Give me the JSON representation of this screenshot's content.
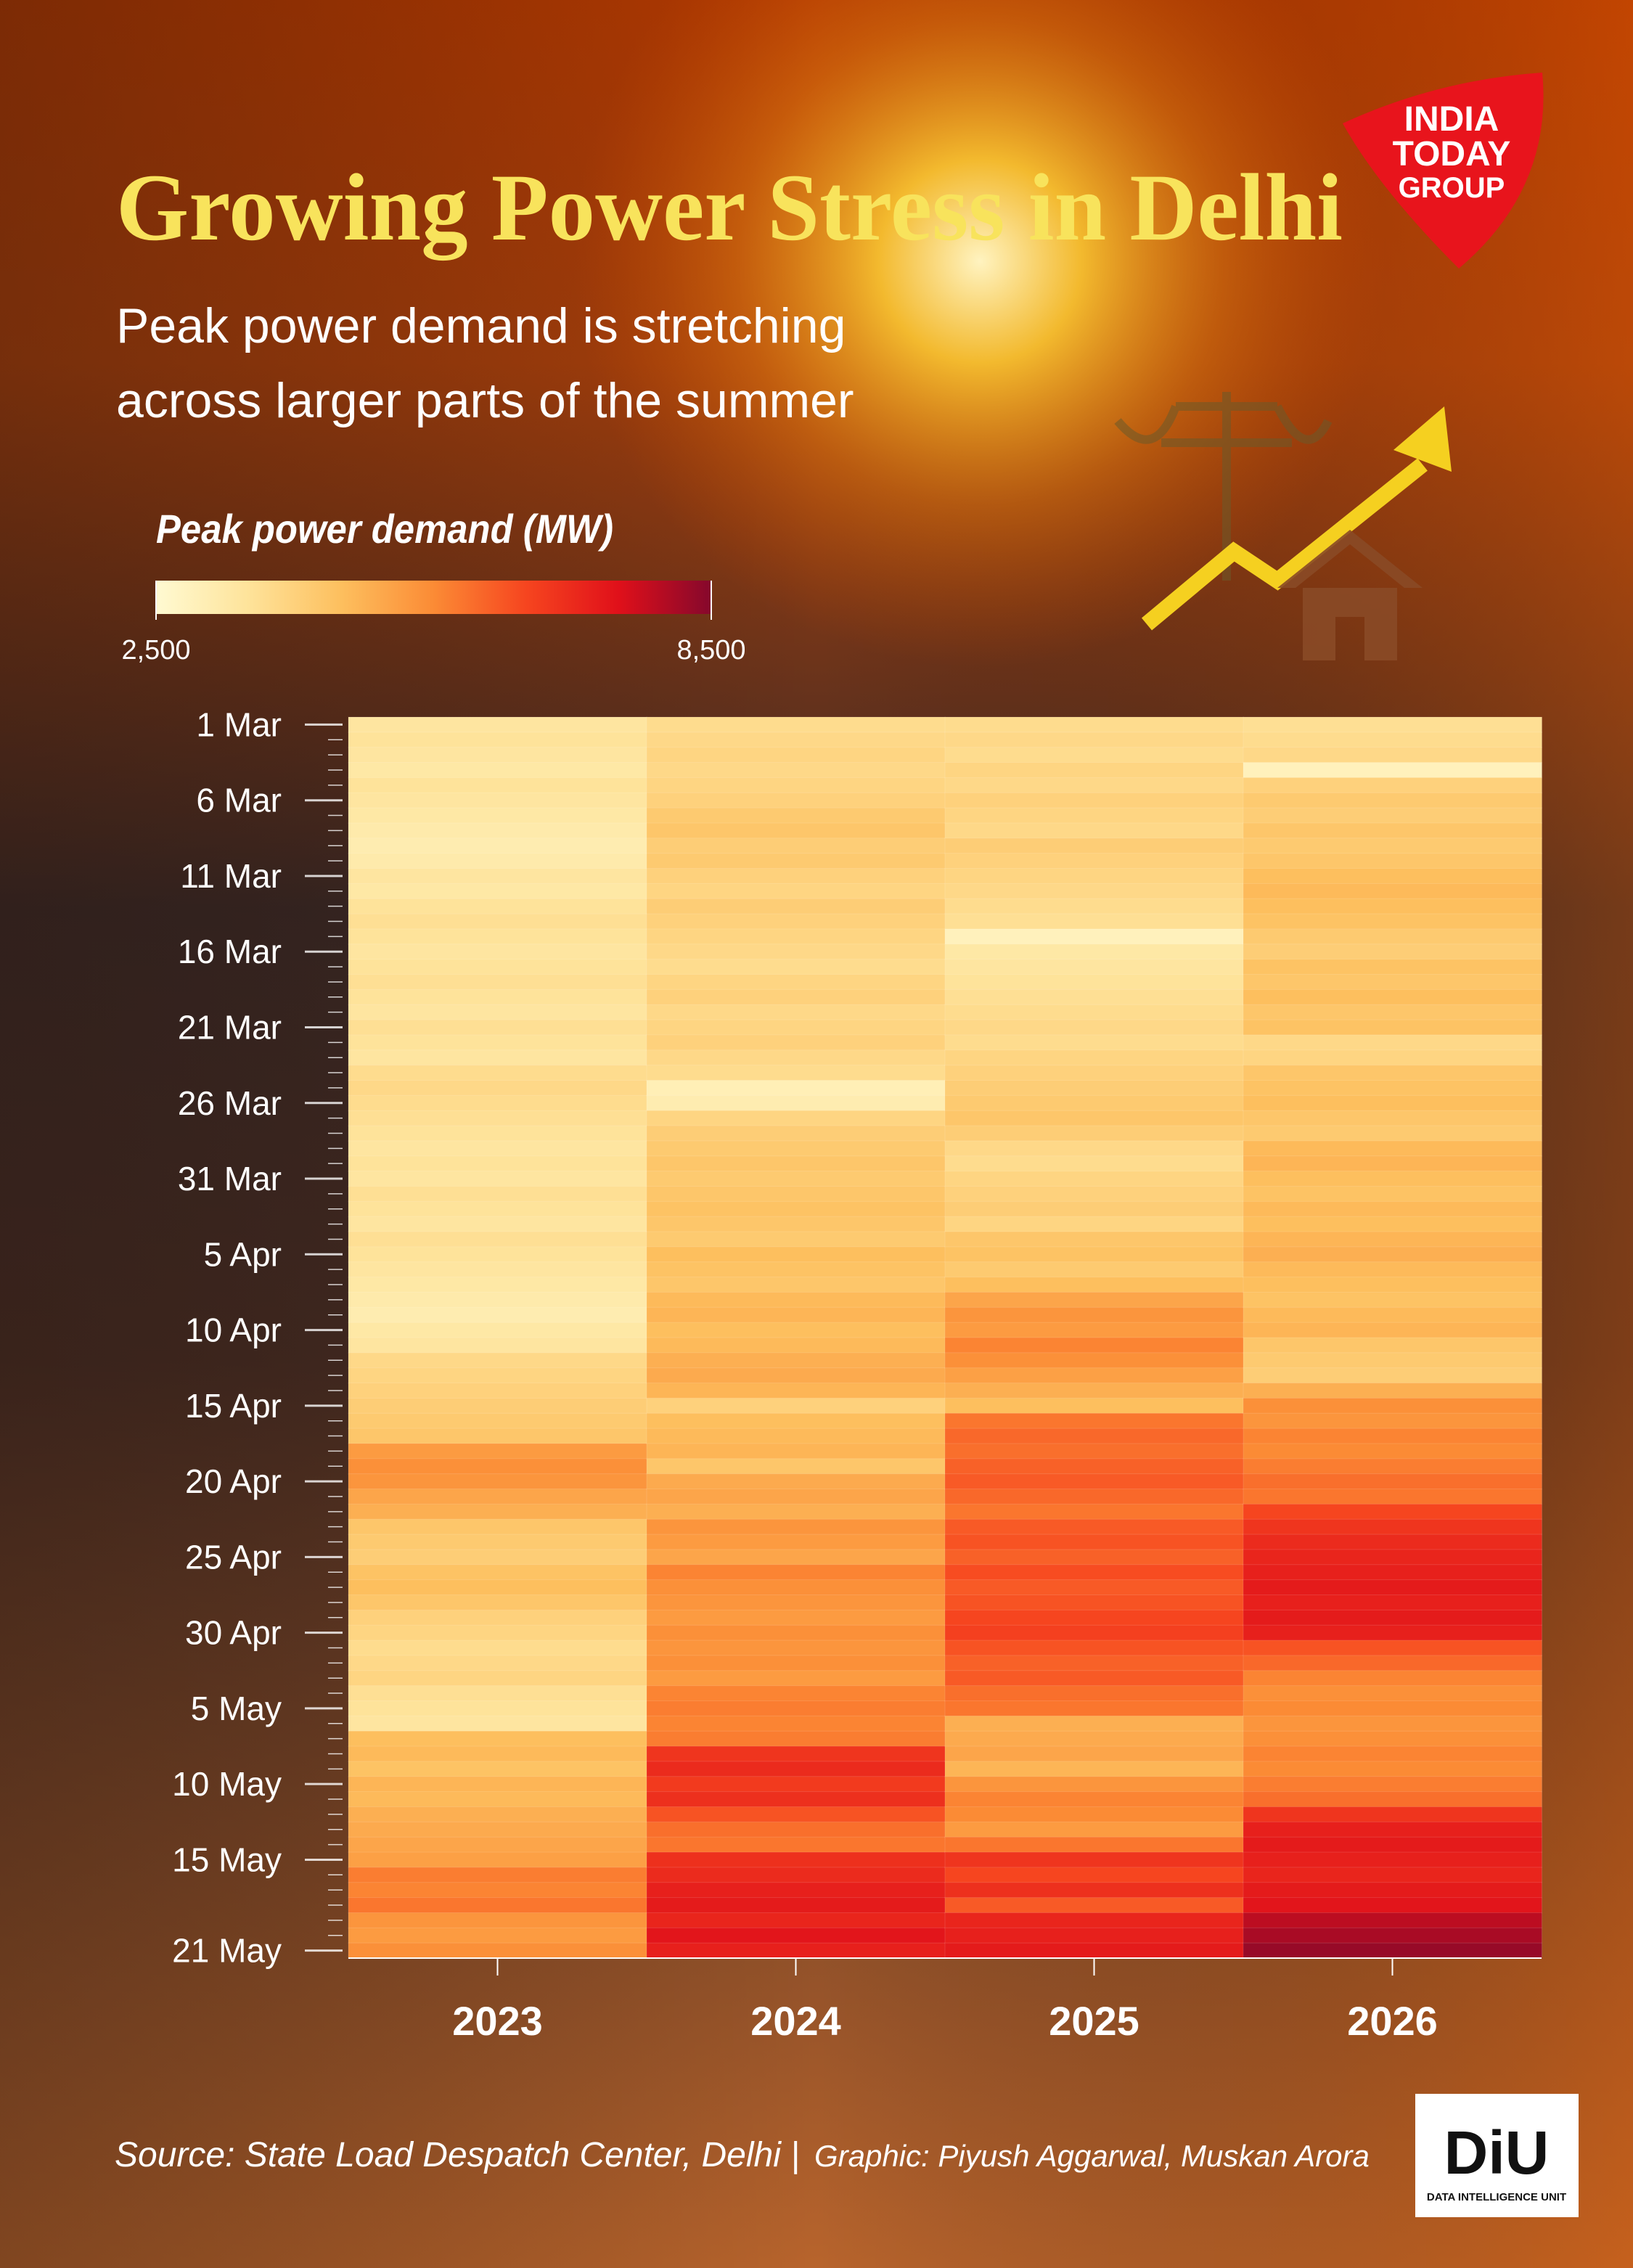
{
  "chart_data": {
    "type": "heatmap",
    "title": "Growing Power Stress in Delhi",
    "subtitle": [
      "Peak power demand is stretching",
      "across larger parts of the summer"
    ],
    "source": "Source: State Load Despatch Center, Delhi |",
    "credit": "Graphic: Piyush Aggarwal, Muskan Arora",
    "logos": {
      "top": [
        "INDIA",
        "TODAY",
        "GROUP"
      ],
      "bottom": [
        "DiU",
        "DATA INTELLIGENCE UNIT"
      ]
    },
    "colorbar": {
      "title": "Peak power demand (MW)",
      "lim": [
        2500,
        8500
      ],
      "ticks": [
        {
          "value": 2500,
          "label": "2,500"
        },
        {
          "value": 8500,
          "label": "8,500"
        }
      ],
      "colors": [
        "#fffad2",
        "#fee39a",
        "#fdbf5e",
        "#fb8b35",
        "#f6451f",
        "#e0101a",
        "#85082c"
      ]
    },
    "categories": [
      "1 Mar",
      null,
      null,
      null,
      null,
      "6 Mar",
      null,
      null,
      null,
      null,
      "11 Mar",
      null,
      null,
      null,
      null,
      "16 Mar",
      null,
      null,
      null,
      null,
      "21 Mar",
      null,
      null,
      null,
      null,
      "26 Mar",
      null,
      null,
      null,
      null,
      "31 Mar",
      null,
      null,
      null,
      null,
      "5 Apr",
      null,
      null,
      null,
      null,
      "10 Apr",
      null,
      null,
      null,
      null,
      "15 Apr",
      null,
      null,
      null,
      null,
      "20 Apr",
      null,
      null,
      null,
      null,
      "25 Apr",
      null,
      null,
      null,
      null,
      "30 Apr",
      null,
      null,
      null,
      null,
      "5 May",
      null,
      null,
      null,
      null,
      "10 May",
      null,
      null,
      null,
      null,
      "15 May",
      null,
      null,
      null,
      null,
      null,
      "21 May"
    ],
    "series": [
      {
        "name": "2023",
        "values": [
          3400,
          3500,
          3400,
          3300,
          3500,
          3400,
          3300,
          3200,
          3100,
          3200,
          3400,
          3300,
          3500,
          3600,
          3500,
          3400,
          3500,
          3600,
          3500,
          3400,
          3600,
          3500,
          3400,
          3700,
          3800,
          3700,
          3600,
          3500,
          3400,
          3500,
          3400,
          3600,
          3500,
          3400,
          3600,
          3500,
          3400,
          3300,
          3200,
          3100,
          3300,
          3400,
          3800,
          3900,
          4000,
          4100,
          4200,
          4300,
          5200,
          5400,
          5300,
          5000,
          4800,
          4300,
          4200,
          4100,
          4400,
          4500,
          4300,
          4000,
          3900,
          3700,
          3800,
          3900,
          3600,
          3500,
          3400,
          4500,
          4600,
          4400,
          4700,
          4600,
          4800,
          4900,
          5000,
          5100,
          5700,
          5600,
          5800,
          5300,
          5200,
          5400
        ]
      },
      {
        "name": "2024",
        "values": [
          3700,
          3800,
          3900,
          3800,
          3900,
          4000,
          4200,
          4300,
          4100,
          4200,
          4000,
          3900,
          4100,
          4000,
          3900,
          3800,
          3700,
          3900,
          4000,
          3800,
          3900,
          4000,
          3800,
          3700,
          3000,
          3100,
          3900,
          4100,
          4200,
          4300,
          4200,
          4300,
          4400,
          4300,
          4200,
          4500,
          4400,
          4300,
          4600,
          4700,
          4500,
          4600,
          4800,
          4900,
          4700,
          4000,
          4500,
          4600,
          4700,
          4300,
          4900,
          5000,
          4800,
          5300,
          5200,
          5000,
          5600,
          5400,
          5300,
          5200,
          5400,
          5300,
          5400,
          5200,
          5600,
          5700,
          5600,
          5700,
          6800,
          7000,
          6700,
          6900,
          6300,
          5900,
          5800,
          6900,
          7000,
          7200,
          7300,
          7100,
          7400,
          7200
        ]
      },
      {
        "name": "2025",
        "values": [
          3700,
          3800,
          3700,
          3900,
          3800,
          4000,
          3900,
          3800,
          4100,
          4000,
          3900,
          3800,
          3700,
          3600,
          2900,
          3300,
          3400,
          3500,
          3600,
          3700,
          3800,
          3700,
          3900,
          4000,
          4100,
          4200,
          4300,
          4100,
          3800,
          3700,
          3900,
          4000,
          4100,
          3900,
          4300,
          4400,
          4200,
          4500,
          5000,
          5300,
          5200,
          5600,
          5400,
          5100,
          4800,
          4500,
          5800,
          6000,
          5900,
          6100,
          6200,
          6000,
          5800,
          6200,
          6300,
          6100,
          6400,
          6200,
          6300,
          6500,
          6600,
          6300,
          6100,
          6200,
          5900,
          5800,
          4800,
          4900,
          5000,
          4700,
          5300,
          5600,
          5500,
          5200,
          5800,
          6800,
          6500,
          6900,
          6200,
          7100,
          7200,
          7300
        ]
      },
      {
        "name": "2026",
        "values": [
          3600,
          3700,
          3800,
          2900,
          4000,
          4200,
          4100,
          4300,
          4200,
          4300,
          4500,
          4600,
          4500,
          4400,
          4200,
          4100,
          4400,
          4300,
          4500,
          4300,
          4400,
          3800,
          3900,
          4300,
          4400,
          4500,
          4300,
          4200,
          4600,
          4700,
          4500,
          4400,
          4600,
          4500,
          4700,
          4800,
          4600,
          4500,
          4400,
          4600,
          4700,
          4300,
          4200,
          4100,
          4800,
          5400,
          5300,
          5600,
          5500,
          5700,
          5900,
          5800,
          6500,
          6800,
          7000,
          7100,
          7200,
          7300,
          7200,
          7300,
          7200,
          6300,
          6000,
          5600,
          5400,
          5500,
          5300,
          5400,
          5600,
          5500,
          5700,
          5900,
          6800,
          7200,
          7300,
          7200,
          7100,
          7300,
          7400,
          7900,
          8100,
          8300
        ]
      }
    ]
  }
}
